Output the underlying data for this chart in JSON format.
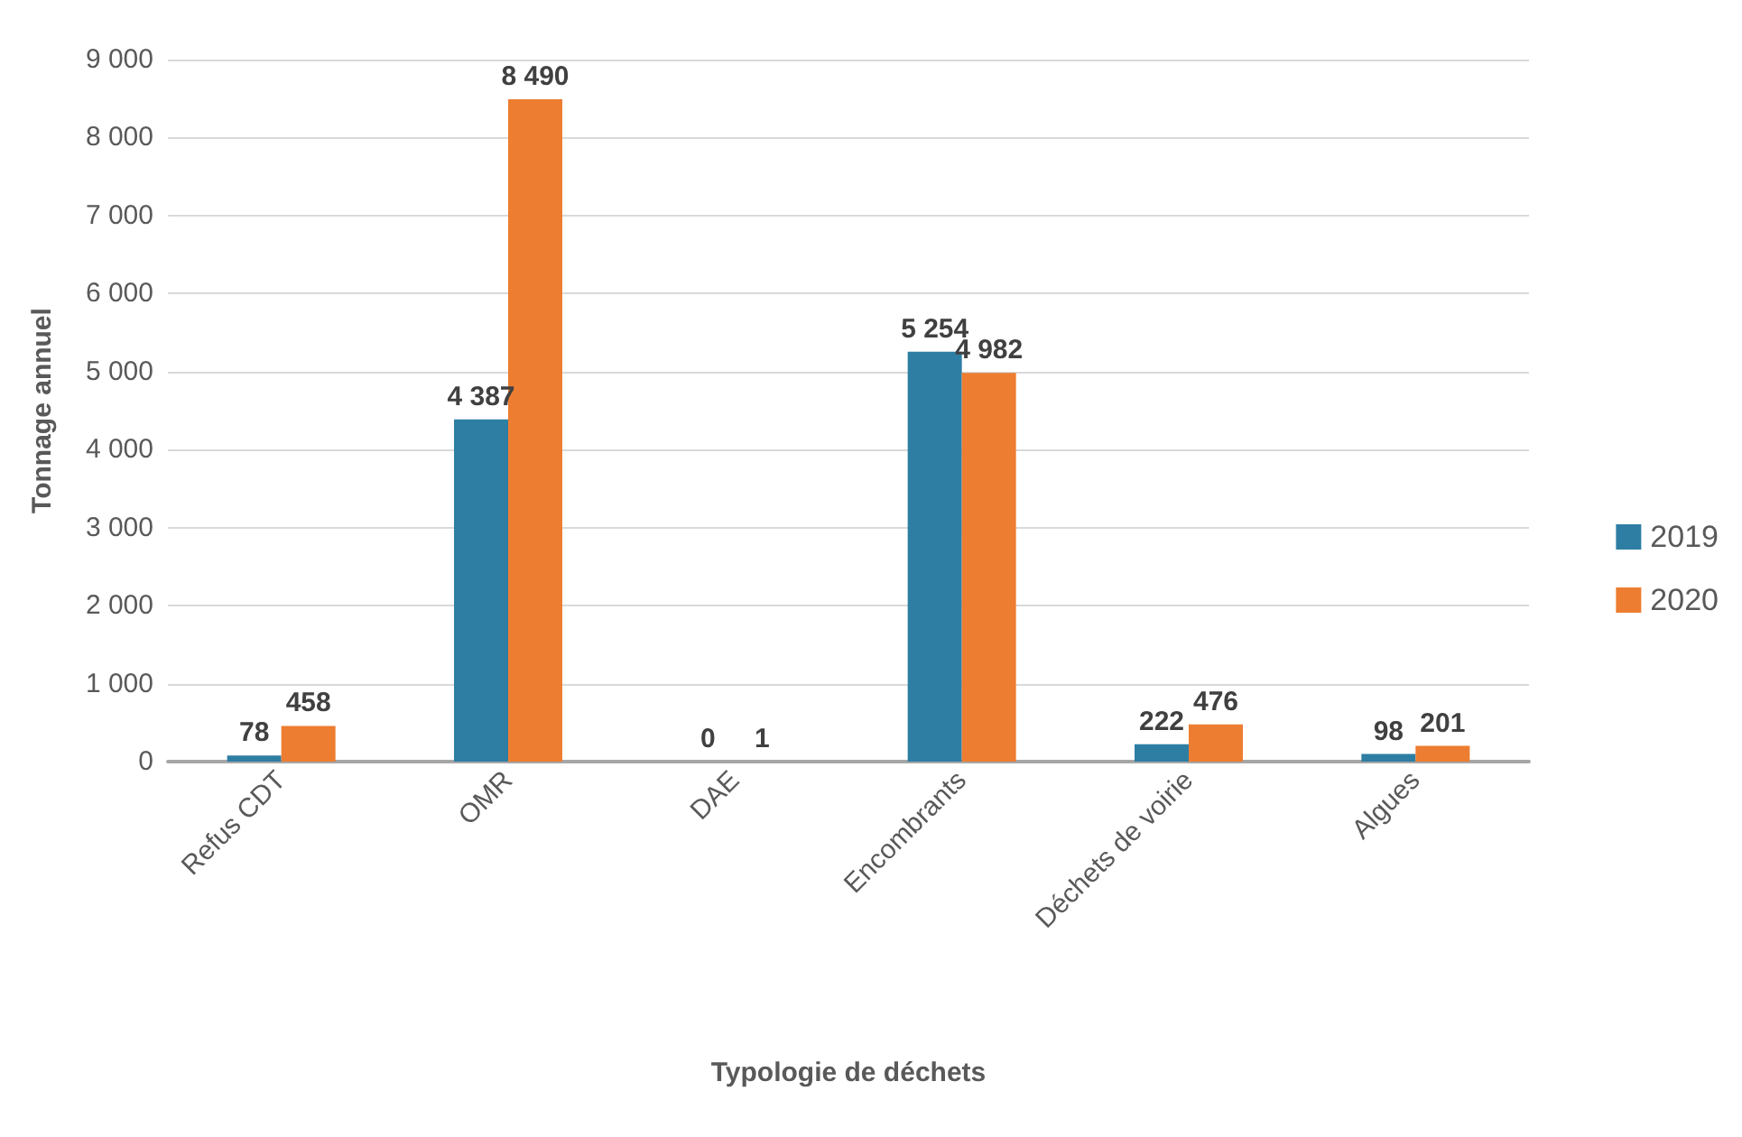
{
  "chart_data": {
    "type": "bar",
    "xlabel": "Typologie de déchets",
    "ylabel": "Tonnage annuel",
    "categories": [
      "Refus CDT",
      "OMR",
      "DAE",
      "Encombrants",
      "Déchets de voirie",
      "Algues"
    ],
    "series": [
      {
        "name": "2019",
        "color": "#2e7ea3",
        "values": [
          78,
          4387,
          0,
          5254,
          222,
          98
        ],
        "value_labels": [
          "78",
          "4 387",
          "0",
          "5 254",
          "222",
          "98"
        ]
      },
      {
        "name": "2020",
        "color": "#ed7d31",
        "values": [
          458,
          8490,
          1,
          4982,
          476,
          201
        ],
        "value_labels": [
          "458",
          "8 490",
          "1",
          "4 982",
          "476",
          "201"
        ]
      }
    ],
    "ylim": [
      0,
      9000
    ],
    "yticks": [
      {
        "value": 0,
        "label": "0"
      },
      {
        "value": 1000,
        "label": "1 000"
      },
      {
        "value": 2000,
        "label": "2 000"
      },
      {
        "value": 3000,
        "label": "3 000"
      },
      {
        "value": 4000,
        "label": "4 000"
      },
      {
        "value": 5000,
        "label": "5 000"
      },
      {
        "value": 6000,
        "label": "6 000"
      },
      {
        "value": 7000,
        "label": "7 000"
      },
      {
        "value": 8000,
        "label": "8 000"
      },
      {
        "value": 9000,
        "label": "9 000"
      }
    ],
    "grid": "y",
    "legend": "right"
  }
}
